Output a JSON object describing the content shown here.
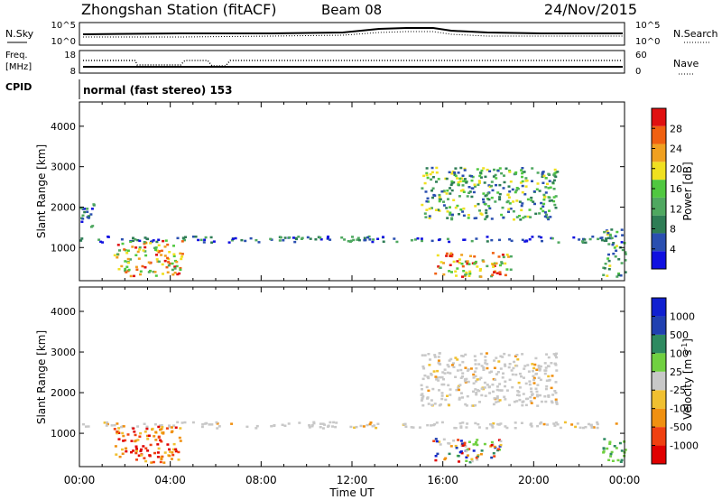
{
  "header": {
    "station": "Zhongshan Station (fitACF)",
    "beam": "Beam 08",
    "date": "24/Nov/2015"
  },
  "noise_panel": {
    "left_label": "N.Sky",
    "left_ticks": [
      "10^5",
      "10^0"
    ],
    "right_label": "N.Search",
    "right_ticks": [
      "10^5",
      "10^0"
    ]
  },
  "freq_panel": {
    "left_label_1": "Freq.",
    "left_label_2": "[MHz]",
    "left_ticks": [
      "18",
      "8"
    ],
    "right_label": "Nave",
    "right_ticks": [
      "60",
      "0"
    ]
  },
  "cpid": {
    "label": "CPID",
    "text": "normal (fast stereo) 153"
  },
  "colors": {
    "power_scale": [
      "#1010e0",
      "#2a4fb0",
      "#2e7d55",
      "#4fa860",
      "#50c840",
      "#f0e020",
      "#f0a020",
      "#f06010",
      "#e01010"
    ],
    "velocity_scale": [
      "#e00000",
      "#f04010",
      "#f09010",
      "#f0c030",
      "#c8c8c8",
      "#70d040",
      "#2e8a60",
      "#2040b0",
      "#1020d0"
    ],
    "ground_scatter": "#c8c8c8"
  },
  "chart_data": [
    {
      "type": "heatmap",
      "panel": "power",
      "ylabel": "Slant Range [km]",
      "yticks": [
        "1000",
        "2000",
        "3000",
        "4000"
      ],
      "ylim": [
        180,
        4600
      ],
      "xlim_hours": [
        0,
        24
      ],
      "colorbar": {
        "label": "Power [dB]",
        "range": [
          0,
          32
        ],
        "ticks": [
          "4",
          "8",
          "12",
          "16",
          "20",
          "24",
          "28"
        ]
      },
      "features": [
        {
          "t_start": 0.0,
          "t_end": 24.0,
          "r_low": 1150,
          "r_high": 1300,
          "level": "low"
        },
        {
          "t_start": 0.0,
          "t_end": 0.6,
          "r_low": 1500,
          "r_high": 2100,
          "level": "low"
        },
        {
          "t_start": 1.5,
          "t_end": 4.5,
          "r_low": 300,
          "r_high": 1200,
          "level": "high"
        },
        {
          "t_start": 15.5,
          "t_end": 19.0,
          "r_low": 300,
          "r_high": 900,
          "level": "high"
        },
        {
          "t_start": 15.0,
          "t_end": 21.0,
          "r_low": 1700,
          "r_high": 3000,
          "level": "medium"
        },
        {
          "t_start": 23.0,
          "t_end": 24.0,
          "r_low": 300,
          "r_high": 1500,
          "level": "medium"
        }
      ]
    },
    {
      "type": "heatmap",
      "panel": "velocity",
      "ylabel": "Slant Range [km]",
      "yticks": [
        "1000",
        "2000",
        "3000",
        "4000"
      ],
      "ylim": [
        180,
        4600
      ],
      "xlim_hours": [
        0,
        24
      ],
      "xticks": [
        "00:00",
        "04:00",
        "08:00",
        "12:00",
        "16:00",
        "20:00",
        "00:00"
      ],
      "xlabel": "Time UT",
      "colorbar": {
        "label": "Velocity [m s",
        "label_exponent": "-1",
        "label_close": "]",
        "ticks": [
          "-1000",
          "-500",
          "-100",
          "-25",
          "25",
          "100",
          "500",
          "1000"
        ]
      },
      "features": [
        {
          "t_start": 0.0,
          "t_end": 24.0,
          "r_low": 1150,
          "r_high": 1300,
          "category": "ground_scatter"
        },
        {
          "t_start": 1.5,
          "t_end": 4.5,
          "r_low": 300,
          "r_high": 1200,
          "category": "negative"
        },
        {
          "t_start": 15.5,
          "t_end": 18.5,
          "r_low": 300,
          "r_high": 900,
          "category": "mixed"
        },
        {
          "t_start": 15.0,
          "t_end": 21.0,
          "r_low": 1700,
          "r_high": 3000,
          "category": "ground_scatter"
        },
        {
          "t_start": 23.0,
          "t_end": 24.0,
          "r_low": 300,
          "r_high": 900,
          "category": "positive"
        }
      ]
    }
  ]
}
